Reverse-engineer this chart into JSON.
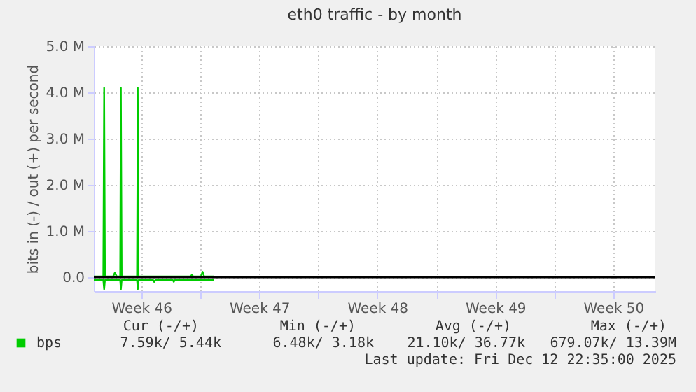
{
  "chart_data": {
    "type": "line",
    "title": "eth0 traffic - by month",
    "ylabel": "bits in (-) / out (+) per second",
    "xlim": [
      "2025-11-10T16:30",
      "2025-12-14T00:00"
    ],
    "xticks": [
      {
        "value": "2025-11-13T12:00",
        "label": "Week 46"
      },
      {
        "value": "2025-11-17T00:00",
        "label": null
      },
      {
        "value": "2025-11-20T12:00",
        "label": "Week 47"
      },
      {
        "value": "2025-11-24T00:00",
        "label": null
      },
      {
        "value": "2025-11-27T12:00",
        "label": "Week 48"
      },
      {
        "value": "2025-12-01T00:00",
        "label": null
      },
      {
        "value": "2025-12-04T12:00",
        "label": "Week 49"
      },
      {
        "value": "2025-12-08T00:00",
        "label": null
      },
      {
        "value": "2025-12-11T12:00",
        "label": "Week 50"
      }
    ],
    "ylim": [
      -300000,
      5000000
    ],
    "yticks": [
      {
        "value": 0,
        "label": "0.0"
      },
      {
        "value": 1000000,
        "label": "1.0 M"
      },
      {
        "value": 2000000,
        "label": "2.0 M"
      },
      {
        "value": 3000000,
        "label": "3.0 M"
      },
      {
        "value": 4000000,
        "label": "4.0 M"
      },
      {
        "value": 5000000,
        "label": "5.0 M"
      }
    ],
    "grid": true,
    "legend": "bottom left",
    "line_style": "solid",
    "series": [
      {
        "name": "bps",
        "color": "#00cc00",
        "x": [
          "2025-11-10T16:30",
          "2025-11-11T06:00",
          "2025-11-11T07:10",
          "2025-11-11T08:20",
          "2025-11-11T20:00",
          "2025-11-11T22:30",
          "2025-11-12T01:00",
          "2025-11-12T06:00",
          "2025-11-12T07:00",
          "2025-11-12T08:10",
          "2025-11-13T06:00",
          "2025-11-13T07:00",
          "2025-11-13T08:10",
          "2025-11-16T10:00",
          "2025-11-16T12:00",
          "2025-11-16T14:00",
          "2025-11-17T01:00",
          "2025-11-17T03:20",
          "2025-11-17T05:30",
          "2025-11-17T19:00"
        ],
        "values": [
          20000,
          20000,
          4100000,
          20000,
          20000,
          100000,
          20000,
          20000,
          4100000,
          20000,
          20000,
          4100000,
          20000,
          20000,
          50000,
          20000,
          20000,
          120000,
          20000,
          20000
        ]
      },
      {
        "color": "#00cc00",
        "x": [
          "2025-11-10T16:30",
          "2025-11-11T06:00",
          "2025-11-11T07:10",
          "2025-11-11T08:20",
          "2025-11-12T06:00",
          "2025-11-12T07:00",
          "2025-11-12T08:10",
          "2025-11-13T06:00",
          "2025-11-13T07:00",
          "2025-11-13T08:10",
          "2025-11-14T05:00",
          "2025-11-14T06:30",
          "2025-11-14T08:00",
          "2025-11-15T09:00",
          "2025-11-15T10:20",
          "2025-11-15T11:40",
          "2025-11-17T19:00"
        ],
        "values": [
          -60000,
          -60000,
          -260000,
          -60000,
          -60000,
          -260000,
          -60000,
          -60000,
          -260000,
          -60000,
          -60000,
          -100000,
          -60000,
          -60000,
          -100000,
          -60000,
          -60000
        ]
      }
    ],
    "ref_lines": [
      {
        "axis": "y",
        "value": 0,
        "color": "#000000"
      }
    ],
    "annotations": [
      "Cur (-/+)",
      "Min (-/+)",
      "Avg (-/+)",
      "Max (-/+)",
      "7.59k/ 5.44k",
      "6.48k/ 3.18k",
      "21.10k/ 36.77k",
      "679.07k/ 13.39M",
      "Last update: Fri Dec 12 22:35:00 2025"
    ]
  }
}
